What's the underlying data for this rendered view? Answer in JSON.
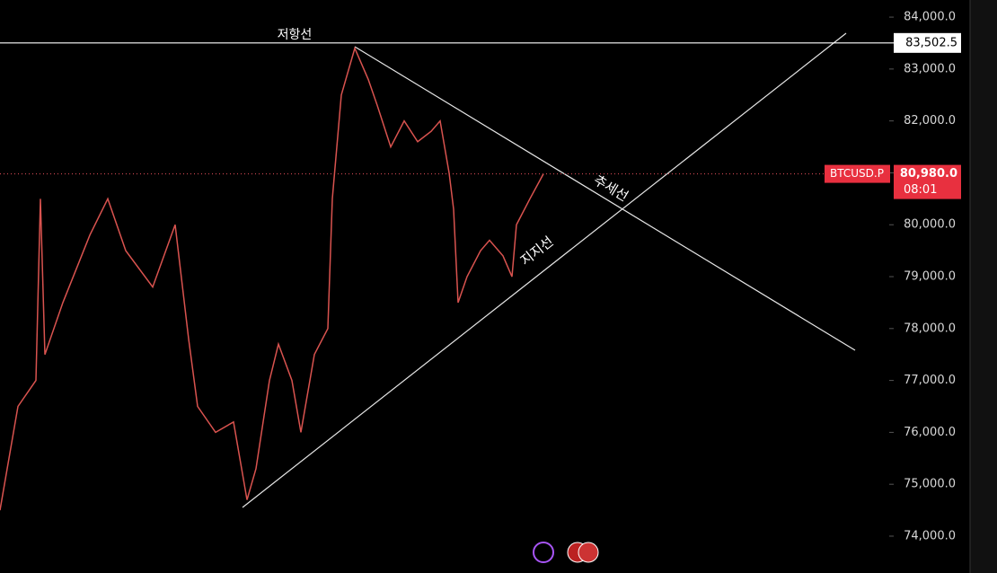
{
  "chart_data": {
    "type": "line",
    "x": [
      0,
      4,
      8,
      9,
      10,
      14,
      20,
      24,
      28,
      34,
      39,
      42,
      44,
      48,
      52,
      55,
      57,
      60,
      62,
      65,
      67,
      70,
      73,
      74,
      76,
      79,
      82,
      84,
      87,
      90,
      93,
      96,
      98,
      100,
      101,
      102,
      104,
      107,
      109,
      112,
      114,
      115,
      118,
      121
    ],
    "series": [
      {
        "name": "BTCUSD.P",
        "color": "#d9534f",
        "values": [
          74500,
          76500,
          77000,
          80500,
          77500,
          78500,
          79800,
          80500,
          79500,
          78800,
          80000,
          77800,
          76500,
          76000,
          76200,
          74700,
          75300,
          77000,
          77700,
          77000,
          76000,
          77500,
          78000,
          80500,
          82500,
          83400,
          82800,
          82300,
          81500,
          82000,
          81600,
          81800,
          82000,
          81000,
          80300,
          78500,
          79000,
          79500,
          79700,
          79400,
          79000,
          80000,
          80500,
          80980
        ]
      }
    ],
    "xlim": [
      0,
      198
    ],
    "ylim": [
      73290,
      84330
    ],
    "yticks": [
      {
        "value": 74000,
        "label": "74,000.0"
      },
      {
        "value": 75000,
        "label": "75,000.0"
      },
      {
        "value": 76000,
        "label": "76,000.0"
      },
      {
        "value": 77000,
        "label": "77,000.0"
      },
      {
        "value": 78000,
        "label": "78,000.0"
      },
      {
        "value": 79000,
        "label": "79,000.0"
      },
      {
        "value": 80000,
        "label": "80,000.0"
      },
      {
        "value": 81000,
        "label": "81,000.0"
      },
      {
        "value": 82000,
        "label": "82,000.0"
      },
      {
        "value": 83000,
        "label": "83,000.0"
      },
      {
        "value": 84000,
        "label": "84,000.0"
      }
    ],
    "last_price": {
      "value": 80980,
      "label": "80,980.0"
    },
    "countdown": "08:01",
    "resistance": {
      "value": 83502.5,
      "label": "83,502.5",
      "name": "저항선"
    },
    "trend_label": "추세선",
    "support_label": "지지선"
  }
}
